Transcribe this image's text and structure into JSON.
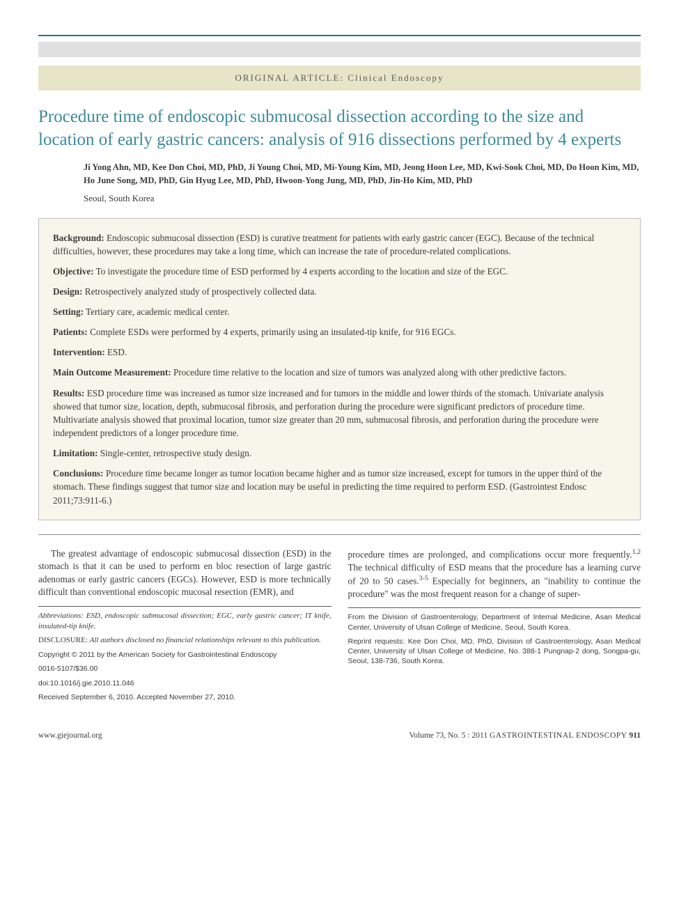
{
  "colors": {
    "accent_teal": "#1a7a7a",
    "title_color": "#3b8a9a",
    "grey_bar": "#e1e1e1",
    "tan_bar": "#e8e4c8",
    "abstract_bg": "#f8f6ea",
    "abstract_border": "#bfbfbf",
    "body_text": "#3a3a3a",
    "rule_color": "#5a5a5a"
  },
  "typography": {
    "body_font": "Georgia, Times New Roman, serif",
    "sans_font": "Arial, Helvetica, sans-serif",
    "title_size_pt": 19,
    "body_size_pt": 10,
    "footnote_size_pt": 8
  },
  "header": {
    "category": "ORIGINAL ARTICLE: Clinical Endoscopy"
  },
  "article": {
    "title": "Procedure time of endoscopic submucosal dissection according to the size and location of early gastric cancers: analysis of 916 dissections performed by 4 experts",
    "authors": "Ji Yong Ahn, MD, Kee Don Choi, MD, PhD, Ji Young Choi, MD, Mi-Young Kim, MD, Jeong Hoon Lee, MD, Kwi-Sook Choi, MD, Do Hoon Kim, MD, Ho June Song, MD, PhD, Gin Hyug Lee, MD, PhD, Hwoon-Yong Jung, MD, PhD, Jin-Ho Kim, MD, PhD",
    "affiliation": "Seoul, South Korea"
  },
  "abstract": {
    "background_label": "Background:",
    "background": " Endoscopic submucosal dissection (ESD) is curative treatment for patients with early gastric cancer (EGC). Because of the technical difficulties, however, these procedures may take a long time, which can increase the rate of procedure-related complications.",
    "objective_label": "Objective:",
    "objective": " To investigate the procedure time of ESD performed by 4 experts according to the location and size of the EGC.",
    "design_label": "Design:",
    "design": " Retrospectively analyzed study of prospectively collected data.",
    "setting_label": "Setting:",
    "setting": " Tertiary care, academic medical center.",
    "patients_label": "Patients:",
    "patients": " Complete ESDs were performed by 4 experts, primarily using an insulated-tip knife, for 916 EGCs.",
    "intervention_label": "Intervention:",
    "intervention": " ESD.",
    "main_outcome_label": "Main Outcome Measurement:",
    "main_outcome": " Procedure time relative to the location and size of tumors was analyzed along with other predictive factors.",
    "results_label": "Results:",
    "results": " ESD procedure time was increased as tumor size increased and for tumors in the middle and lower thirds of the stomach. Univariate analysis showed that tumor size, location, depth, submucosal fibrosis, and perforation during the procedure were significant predictors of procedure time. Multivariate analysis showed that proximal location, tumor size greater than 20 mm, submucosal fibrosis, and perforation during the procedure were independent predictors of a longer procedure time.",
    "limitation_label": "Limitation:",
    "limitation": " Single-center, retrospective study design.",
    "conclusions_label": "Conclusions:",
    "conclusions": " Procedure time became longer as tumor location became higher and as tumor size increased, except for tumors in the upper third of the stomach. These findings suggest that tumor size and location may be useful in predicting the time required to perform ESD. (Gastrointest Endosc 2011;73:911-6.)"
  },
  "body": {
    "left_para": "The greatest advantage of endoscopic submucosal dissection (ESD) in the stomach is that it can be used to perform en bloc resection of large gastric adenomas or early gastric cancers (EGCs). However, ESD is more technically difficult than conventional endoscopic mucosal resection (EMR), and",
    "right_para_before_sup1": "procedure times are prolonged, and complications occur more frequently.",
    "sup1": "1,2",
    "right_para_mid": " The technical difficulty of ESD means that the procedure has a learning curve of 20 to 50 cases.",
    "sup2": "3-5",
    "right_para_after": " Especially for beginners, an \"inability to continue the procedure\" was the most frequent reason for a change of super-"
  },
  "footnotes": {
    "left": {
      "abbrev": "Abbreviations: ESD, endoscopic submucosal dissection; EGC, early gastric cancer; IT knife, insulated-tip knife.",
      "disclosure_label": "DISCLOSURE: ",
      "disclosure": "All authors disclosed no financial relationships relevant to this publication.",
      "copyright": "Copyright © 2011 by the American Society for Gastrointestinal Endoscopy",
      "issn": "0016-5107/$36.00",
      "doi": "doi:10.1016/j.gie.2010.11.046",
      "received": "Received September 6, 2010. Accepted November 27, 2010."
    },
    "right": {
      "affil": "From the Division of Gastroenterology, Department of Internal Medicine, Asan Medical Center, University of Ulsan College of Medicine, Seoul, South Korea.",
      "reprint": "Reprint requests: Kee Don Choi, MD, PhD, Division of Gastroenterology, Asan Medical Center, University of Ulsan College of Medicine, No. 388-1 Pungnap-2 dong, Songpa-gu, Seoul, 138-736, South Korea."
    }
  },
  "footer": {
    "left": "www.giejournal.org",
    "right_issue": "Volume 73, No. 5 : 2011 ",
    "right_journal": "GASTROINTESTINAL ENDOSCOPY",
    "page_no": " 911"
  }
}
